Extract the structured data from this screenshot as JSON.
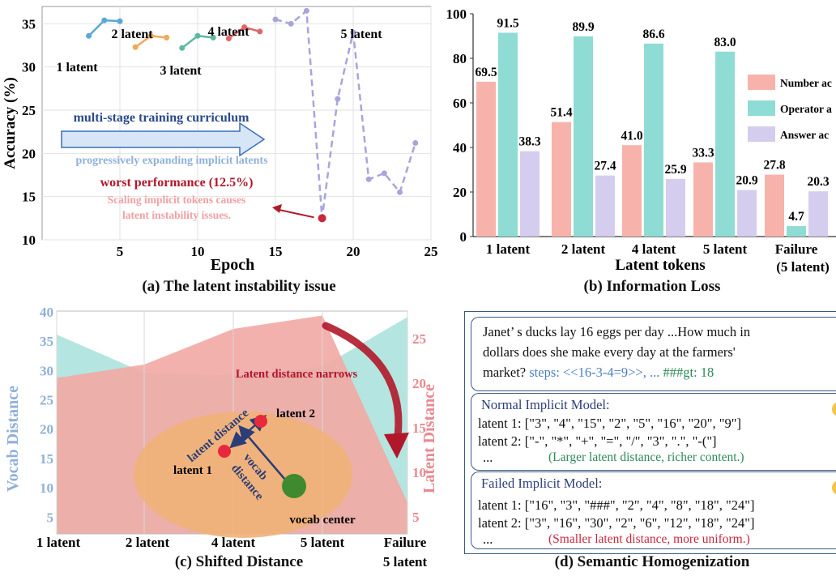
{
  "colors": {
    "curve_solid": [
      "#5aa7d8",
      "#f0a85a",
      "#5cb8a0",
      "#e06666"
    ],
    "curve_dashed": "#a8a4dc",
    "worst_point": "#c8283c",
    "bar_number": "#f7b3ab",
    "bar_operator": "#8fdcd4",
    "bar_answer": "#d4cdee",
    "arrow_fill": "#d7e6f6",
    "arrow_stroke": "#3b6fb6",
    "area_red": "#f2a8a4",
    "area_teal": "#a8e0da",
    "ellipse": "#f0b27a",
    "dark_red": "#b0182a",
    "vocab_axis": "#8fb0d8",
    "latent_axis": "#e88a90",
    "green_text": "#2e8b57",
    "steps_blue": "#4a7fbf"
  },
  "captions": {
    "a": "(a) The latent instability issue",
    "b": "(b) Information Loss",
    "c": "(c) Shifted Distance",
    "d": "(d) Semantic Homogenization"
  },
  "chart_data": [
    {
      "type": "line",
      "xlabel": "Epoch",
      "ylabel": "Accuracy (%)",
      "xlim": [
        0,
        25
      ],
      "ylim": [
        10,
        37
      ],
      "xticks": [
        "5",
        "10",
        "15",
        "20",
        "25"
      ],
      "yticks": [
        "10",
        "15",
        "20",
        "25",
        "30",
        "35"
      ],
      "series": [
        {
          "name": "1 latent",
          "x": [
            3,
            4,
            5
          ],
          "y": [
            33.6,
            35.4,
            35.3
          ]
        },
        {
          "name": "2 latent",
          "x": [
            6,
            7,
            8
          ],
          "y": [
            32.3,
            33.6,
            33.4
          ]
        },
        {
          "name": "3 latent",
          "x": [
            9,
            10,
            11
          ],
          "y": [
            32.2,
            33.6,
            33.4
          ]
        },
        {
          "name": "4 latent",
          "x": [
            12,
            13,
            14
          ],
          "y": [
            33.3,
            34.6,
            34.1
          ]
        },
        {
          "name": "5 latent",
          "x": [
            15,
            16,
            17,
            18,
            19,
            20,
            21,
            22,
            23,
            24
          ],
          "y": [
            35.5,
            35.0,
            36.5,
            12.5,
            26.3,
            34.0,
            17.0,
            17.7,
            15.5,
            21.2
          ]
        }
      ],
      "annotations": {
        "curriculum": "multi-stage training curriculum",
        "expanding": "progressively expanding implicit latents",
        "worst": "worst performance (12.5%)",
        "scaling_line1": "Scaling implicit tokens causes",
        "scaling_line2": "latent instability issues."
      }
    },
    {
      "type": "bar",
      "xlabel": "Latent tokens",
      "ylim": [
        0,
        100
      ],
      "yticks": [
        "0",
        "20",
        "40",
        "60",
        "80",
        "100"
      ],
      "categories": [
        "1 latent",
        "2 latent",
        "4 latent",
        "5 latent",
        "Failure"
      ],
      "category_sublabels": [
        "",
        "",
        "",
        "",
        "(5 latent)"
      ],
      "series": [
        {
          "name": "Number ac",
          "values": [
            69.5,
            51.4,
            41.0,
            33.3,
            27.8
          ]
        },
        {
          "name": "Operator a",
          "values": [
            91.5,
            89.9,
            86.6,
            83.0,
            4.7
          ]
        },
        {
          "name": "Answer ac",
          "values": [
            38.3,
            27.4,
            25.9,
            20.9,
            20.3
          ]
        }
      ],
      "value_labels": [
        [
          "69.5",
          "51.4",
          "41.0",
          "33.3",
          "27.8"
        ],
        [
          "91.5",
          "89.9",
          "86.6",
          "83.0",
          "4.7"
        ],
        [
          "38.3",
          "27.4",
          "25.9",
          "20.9",
          "20.3"
        ]
      ],
      "legend_position": "right"
    },
    {
      "type": "area",
      "categories": [
        "1 latent",
        "2 latent",
        "4 latent",
        "5 latent",
        "Failure"
      ],
      "category_sublabels": [
        "",
        "",
        "",
        "",
        "5 latent"
      ],
      "ylabel_left": "Vocab Distance",
      "ylabel_right": "Latent Distance",
      "yticks_left": [
        "5",
        "10",
        "15",
        "20",
        "25",
        "30",
        "35",
        "40"
      ],
      "yticks_right": [
        "5",
        "10",
        "15",
        "20",
        "25"
      ],
      "ylim_left": [
        2,
        40
      ],
      "ylim_right": [
        3,
        28
      ],
      "vocab_distance": [
        36,
        29.5,
        29,
        30.5,
        39
      ],
      "latent_distance": [
        20.5,
        22,
        26,
        27.5,
        6.5
      ],
      "annotations": {
        "narrows": "Latent distance narrows",
        "latent_distance": "latent distance",
        "latent1": "latent 1",
        "latent2": "latent 2",
        "vocab_distance_1": "vocab",
        "vocab_distance_2": "distance",
        "vocab_center": "vocab center"
      }
    }
  ],
  "panel_d": {
    "question": {
      "line1": "Janet’ s ducks lay 16 eggs per day ...How much in",
      "line2": "dollars does she make every day at the farmers'",
      "line3_a": "market? ",
      "line3_steps": "steps: <<16-3-4=9>>, ...",
      "line3_gt": "###gt: 18"
    },
    "normal": {
      "title": "Normal Implicit Model:",
      "latent1": "latent 1: [\"3\", \"4\", \"15\", \"2\", \"5\", \"16\", \"20\", \"9\"]",
      "latent2": "latent 2: [\"-\", \"*\", \"+\", \"=\", \"/\", \"3\", \".\", \"-(\"]",
      "dots": "...",
      "note": "(Larger latent distance, richer content.)"
    },
    "failed": {
      "title": "Failed Implicit Model:",
      "latent1": "latent 1: [\"16\", \"3\", \"###\", \"2\", \"4\", \"8\", \"18\", \"24\"]",
      "latent2": "latent 2: [\"3\", \"16\", \"30\", \"2\", \"6\", \"12\", \"18\", \"24\"]",
      "dots": "...",
      "note": "(Smaller latent distance, more uniform.)"
    }
  }
}
